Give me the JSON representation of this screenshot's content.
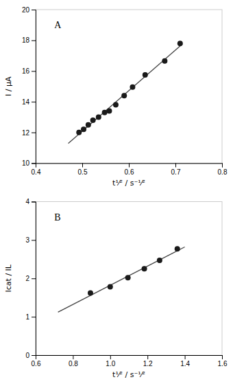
{
  "chart_data": [
    {
      "type": "scatter",
      "x_label": "t¹⁄² / s⁻¹⁄²",
      "y_label": "I / μA",
      "annotations": [
        "A"
      ],
      "xlim": [
        0.4,
        0.8
      ],
      "ylim": [
        10,
        20
      ],
      "xticks": [
        0.4,
        0.5,
        0.6,
        0.7,
        0.8
      ],
      "yticks": [
        10,
        12,
        14,
        16,
        18,
        20
      ],
      "series": [
        {
          "type": "scatter",
          "color": "#1a1a1a",
          "x": [
            0.493,
            0.503,
            0.513,
            0.523,
            0.535,
            0.548,
            0.558,
            0.572,
            0.59,
            0.608,
            0.635,
            0.677,
            0.71
          ],
          "values": [
            12.0,
            12.2,
            12.5,
            12.8,
            13.0,
            13.3,
            13.4,
            13.8,
            14.4,
            14.95,
            15.75,
            16.65,
            17.8
          ]
        },
        {
          "type": "line",
          "color": "#444444",
          "x": [
            0.47,
            0.715
          ],
          "values": [
            11.285,
            17.766
          ]
        }
      ]
    },
    {
      "type": "scatter",
      "x_label": "t¹⁄² / s⁻¹⁄²",
      "y_label": "Icat / IL",
      "annotations": [
        "B"
      ],
      "xlim": [
        0.6,
        1.6
      ],
      "ylim": [
        0,
        4
      ],
      "xticks": [
        0.6,
        0.8,
        {
          "value": 1.0,
          "label": "1.0"
        },
        1.2,
        1.4,
        1.6
      ],
      "yticks": [
        0,
        1,
        2,
        3,
        4
      ],
      "series": [
        {
          "type": "scatter",
          "color": "#1a1a1a",
          "x": [
            0.894,
            1.0,
            1.095,
            1.183,
            1.265,
            1.36
          ],
          "values": [
            1.62,
            1.78,
            2.02,
            2.25,
            2.47,
            2.77
          ]
        },
        {
          "type": "line",
          "color": "#444444",
          "x": [
            0.72,
            1.4
          ],
          "values": [
            1.121,
            2.819
          ]
        }
      ]
    }
  ]
}
